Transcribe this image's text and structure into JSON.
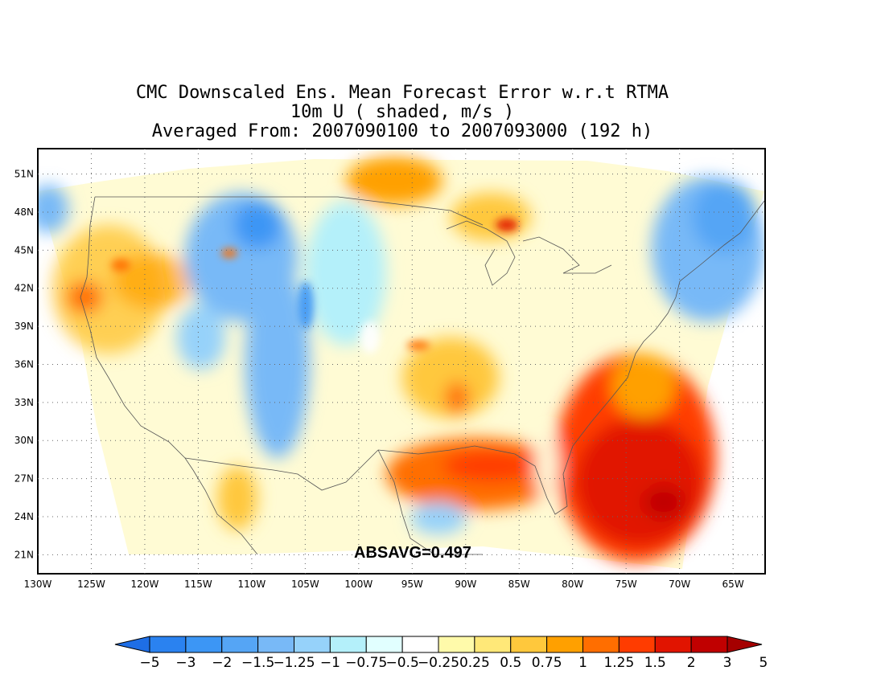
{
  "title": {
    "line1": "CMC Downscaled Ens. Mean Forecast Error w.r.t RTMA",
    "line2": "10m U ( shaded, m/s )",
    "line3": "Averaged From: 2007090100 to 2007093000 (192 h)"
  },
  "map": {
    "lon_range": [
      -130,
      -62
    ],
    "lat_range": [
      19.5,
      53
    ],
    "lon_ticks": [
      "130W",
      "125W",
      "120W",
      "115W",
      "110W",
      "105W",
      "100W",
      "95W",
      "90W",
      "85W",
      "80W",
      "75W",
      "70W",
      "65W"
    ],
    "lat_ticks": [
      "51N",
      "48N",
      "45N",
      "42N",
      "39N",
      "36N",
      "33N",
      "30N",
      "27N",
      "24N",
      "21N"
    ],
    "grid": "dotted",
    "projection": "lat-lon"
  },
  "annotation": {
    "absavg": "ABSAVG=0.497"
  },
  "colorbar": {
    "colors": [
      "#1e6ee6",
      "#2a82f0",
      "#3c96f5",
      "#55a5f5",
      "#78b9f7",
      "#96d2fa",
      "#b4f0fa",
      "#e1ffff",
      "#ffffff",
      "#fffaaa",
      "#ffe878",
      "#ffc83c",
      "#ffa000",
      "#ff6e00",
      "#ff3c00",
      "#e11400",
      "#c00000",
      "#a50000"
    ],
    "labels": [
      "−5",
      "−3",
      "−2",
      "−1.5",
      "−1.25",
      "−1",
      "−0.75",
      "−0.5",
      "−0.25",
      "0.25",
      "0.5",
      "0.75",
      "1",
      "1.25",
      "1.5",
      "2",
      "3",
      "5"
    ]
  },
  "field_regions": [
    {
      "name": "west-coast-positive",
      "color": "#ffc83c"
    },
    {
      "name": "rockies-negative",
      "color": "#55a5f5"
    },
    {
      "name": "southeast-gulf-positive",
      "color": "#ff3c00"
    },
    {
      "name": "atlantic-strong-positive",
      "color": "#e11400"
    },
    {
      "name": "northeast-negative",
      "color": "#78b9f7"
    }
  ]
}
